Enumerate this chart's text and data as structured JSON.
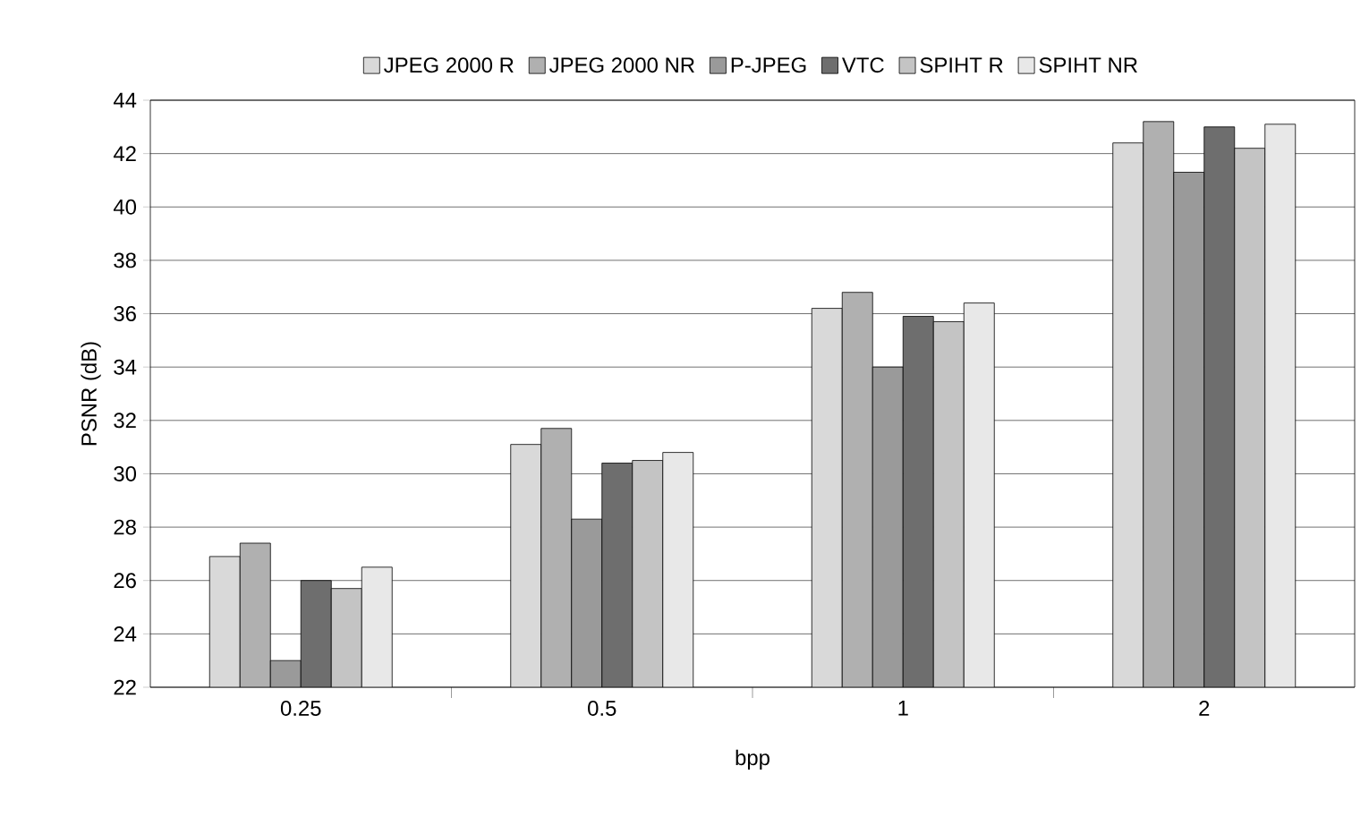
{
  "chart_data": {
    "type": "bar",
    "xlabel": "bpp",
    "ylabel": "PSNR (dB)",
    "categories": [
      "0.25",
      "0.5",
      "1",
      "2"
    ],
    "series": [
      {
        "name": "JPEG 2000 R",
        "color": "#d9d9d9",
        "values": [
          26.9,
          31.1,
          36.2,
          42.4
        ]
      },
      {
        "name": "JPEG 2000 NR",
        "color": "#b0b0b0",
        "values": [
          27.4,
          31.7,
          36.8,
          43.2
        ]
      },
      {
        "name": "P-JPEG",
        "color": "#9a9a9a",
        "values": [
          23.0,
          28.3,
          34.0,
          41.3
        ]
      },
      {
        "name": "VTC",
        "color": "#6e6e6e",
        "values": [
          26.0,
          30.4,
          35.9,
          43.0
        ]
      },
      {
        "name": "SPIHT R",
        "color": "#c4c4c4",
        "values": [
          25.7,
          30.5,
          35.7,
          42.2
        ]
      },
      {
        "name": "SPIHT NR",
        "color": "#e8e8e8",
        "values": [
          26.5,
          30.8,
          36.4,
          43.1
        ]
      }
    ],
    "ylim": [
      22,
      44
    ],
    "yticks": [
      22,
      24,
      26,
      28,
      30,
      32,
      34,
      36,
      38,
      40,
      42,
      44
    ],
    "grid": "y",
    "legend": "top"
  }
}
